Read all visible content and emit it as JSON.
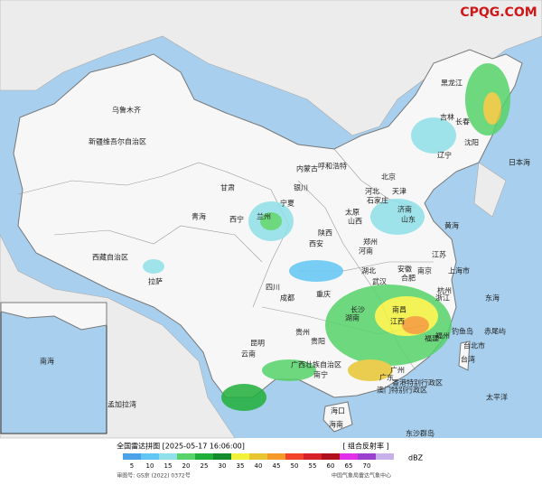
{
  "header": {
    "watermark": "CPQG.COM"
  },
  "map_labels": [
    "新疆维吾尔自治区",
    "乌鲁木齐",
    "西藏自治区",
    "拉萨",
    "青海",
    "西宁",
    "甘肃",
    "兰州",
    "内蒙古",
    "呼和浩特",
    "宁夏",
    "银川",
    "黑龙江",
    "吉林",
    "长春",
    "沈阳",
    "辽宁",
    "北京",
    "天津",
    "河北",
    "石家庄",
    "山西",
    "太原",
    "陕西",
    "西安",
    "河南",
    "郑州",
    "山东",
    "济南",
    "四川",
    "成都",
    "重庆",
    "湖北",
    "武汉",
    "安徽",
    "合肥",
    "江苏",
    "南京",
    "上海市",
    "浙江",
    "杭州",
    "湖南",
    "长沙",
    "江西",
    "南昌",
    "贵州",
    "贵阳",
    "云南",
    "昆明",
    "福建",
    "福州",
    "广西壮族自治区",
    "南宁",
    "广东",
    "广州",
    "香港特别行政区",
    "澳门特别行政区",
    "海南",
    "海口",
    "台湾",
    "台北市",
    "钓鱼岛",
    "赤尾屿",
    "日本海",
    "黄海",
    "东海",
    "太平洋",
    "孟加拉湾",
    "南海",
    "东沙群岛"
  ],
  "legend": {
    "title": "全国雷达拼图 [2025-05-17 16:06:00]",
    "product": "[ 组合反射率 ]",
    "unit": "dBZ",
    "ticks": [
      5,
      10,
      15,
      20,
      25,
      30,
      35,
      40,
      45,
      50,
      55,
      60,
      65,
      70
    ],
    "colors": [
      "#4aa3e8",
      "#62c6f4",
      "#8fe0e8",
      "#57d36a",
      "#20b03a",
      "#138a2b",
      "#f3f23a",
      "#e8c632",
      "#f59a2a",
      "#f3432a",
      "#d8222a",
      "#b0101e",
      "#e230e8",
      "#9a3fce",
      "#c8b0ea"
    ]
  },
  "footer": {
    "approval": "审图号: GS京 (2022) 0372号",
    "source": "中国气象局雷达气象中心"
  }
}
